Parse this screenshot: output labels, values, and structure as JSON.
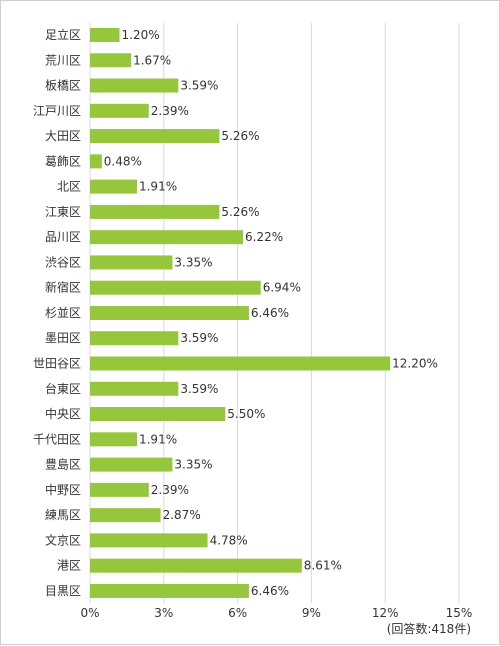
{
  "chart_data": {
    "type": "bar",
    "orientation": "horizontal",
    "categories": [
      "足立区",
      "荒川区",
      "板橋区",
      "江戸川区",
      "大田区",
      "葛飾区",
      "北区",
      "江東区",
      "品川区",
      "渋谷区",
      "新宿区",
      "杉並区",
      "墨田区",
      "世田谷区",
      "台東区",
      "中央区",
      "千代田区",
      "豊島区",
      "中野区",
      "練馬区",
      "文京区",
      "港区",
      "目黒区"
    ],
    "values": [
      1.2,
      1.67,
      3.59,
      2.39,
      5.26,
      0.48,
      1.91,
      5.26,
      6.22,
      3.35,
      6.94,
      6.46,
      3.59,
      12.2,
      3.59,
      5.5,
      1.91,
      3.35,
      2.39,
      2.87,
      4.78,
      8.61,
      6.46
    ],
    "value_labels": [
      "1.20%",
      "1.67%",
      "3.59%",
      "2.39%",
      "5.26%",
      "0.48%",
      "1.91%",
      "5.26%",
      "6.22%",
      "3.35%",
      "6.94%",
      "6.46%",
      "3.59%",
      "12.20%",
      "3.59%",
      "5.50%",
      "1.91%",
      "3.35%",
      "2.39%",
      "2.87%",
      "4.78%",
      "8.61%",
      "6.46%"
    ],
    "xlim": [
      0,
      15
    ],
    "x_ticks": [
      0,
      3,
      6,
      9,
      12,
      15
    ],
    "x_tick_labels": [
      "0%",
      "3%",
      "6%",
      "9%",
      "12%",
      "15%"
    ],
    "note": "(回答数:418件)",
    "grid": true,
    "bar_color": "#96c63b",
    "grid_color": "#d9d9d9"
  }
}
